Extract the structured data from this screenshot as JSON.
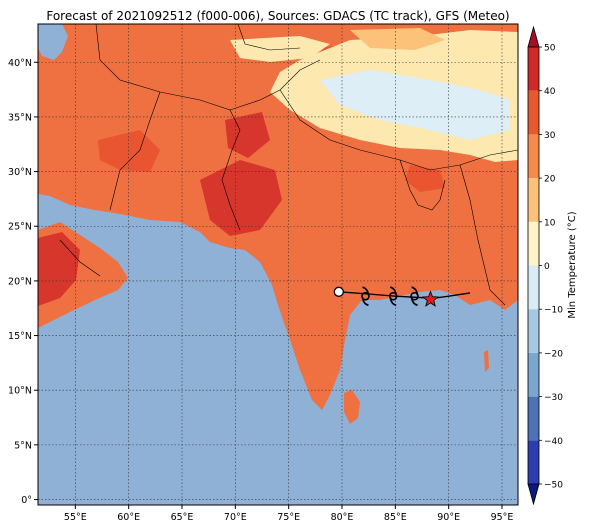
{
  "title": "Forecast of 2021092512 (f000-006), Sources: GDACS (TC track), GFS (Meteo)",
  "map": {
    "lon_ticks": [
      "55°E",
      "60°E",
      "65°E",
      "70°E",
      "75°E",
      "80°E",
      "85°E",
      "90°E",
      "95°E"
    ],
    "lat_ticks": [
      "40°N",
      "35°N",
      "30°N",
      "25°N",
      "20°N",
      "15°N",
      "10°N",
      "5°N",
      "0°"
    ],
    "lon_range": [
      51.5,
      96.5
    ],
    "lat_range": [
      -0.5,
      43.5
    ]
  },
  "track": {
    "points_lon_lat": [
      [
        79.7,
        19.0
      ],
      [
        82.5,
        18.8
      ],
      [
        85.0,
        18.6
      ],
      [
        87.0,
        18.5
      ],
      [
        88.5,
        18.4
      ],
      [
        90.0,
        18.6
      ],
      [
        92.0,
        18.9
      ]
    ],
    "storm_symbol_lons": [
      82.2,
      84.8,
      86.8
    ],
    "start_lon_lat": [
      79.7,
      19.0
    ],
    "current_lon_lat": [
      88.3,
      18.3
    ]
  },
  "colorbar": {
    "label": "Min Temperature (°C)",
    "ticks": [
      "50",
      "40",
      "30",
      "20",
      "10",
      "0",
      "−10",
      "−20",
      "−30",
      "−40",
      "−50"
    ],
    "colors": [
      "#0b1a80",
      "#2b3db0",
      "#4d72b5",
      "#7aa6d0",
      "#a6c8e2",
      "#d8ecf5",
      "#fff3c8",
      "#fdc27a",
      "#f58a4b",
      "#e8582f",
      "#cf2a27",
      "#a50f26"
    ],
    "ocean_color": "#8fb1d6"
  },
  "symbols": {
    "storm": "tropical-storm-icon",
    "current": "star-icon",
    "start": "circle-icon"
  }
}
